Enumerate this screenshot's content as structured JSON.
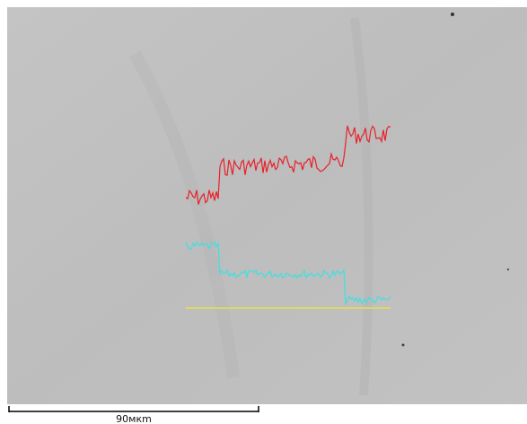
{
  "scale_bar": {
    "label": "90мкm"
  }
}
